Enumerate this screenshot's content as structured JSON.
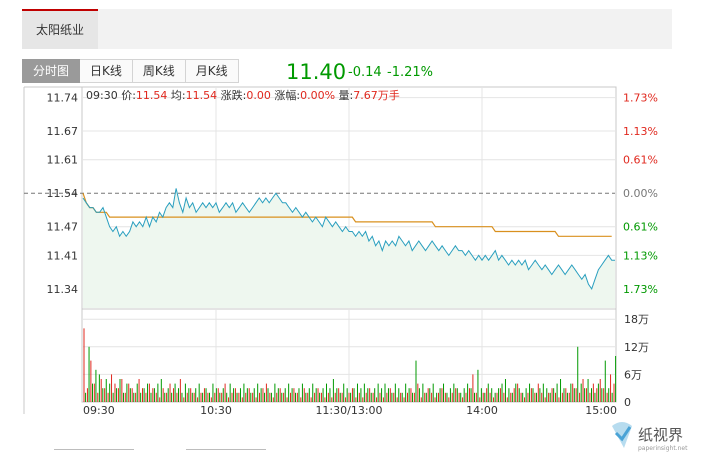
{
  "stock": {
    "name": "太阳纸业"
  },
  "tabs": [
    {
      "label": "分时图",
      "active": true
    },
    {
      "label": "日K线",
      "active": false
    },
    {
      "label": "周K线",
      "active": false
    },
    {
      "label": "月K线",
      "active": false
    }
  ],
  "quote": {
    "price": "11.40",
    "change": "-0.14",
    "change_pct": "-1.21%"
  },
  "info": {
    "time": "09:30",
    "price_label": "价:",
    "price": "11.54",
    "avg_label": "均:",
    "avg": "11.54",
    "chg_label": "涨跌:",
    "chg": "0.00",
    "amp_label": "涨幅:",
    "amp": "0.00%",
    "vol_label": "量:",
    "vol": "7.67万手"
  },
  "colors": {
    "up": "#e0281e",
    "down": "#009900",
    "price_line": "#2a9fbf",
    "avg_line": "#d9901e",
    "area_fill": "#eef7ef",
    "grid": "#e4e4e4"
  },
  "chart_data": {
    "type": "line",
    "prev_close": 11.54,
    "price_ticks": [
      "11.74",
      "11.67",
      "11.61",
      "11.54",
      "11.47",
      "11.41",
      "11.34"
    ],
    "price_tick_values": [
      11.74,
      11.67,
      11.61,
      11.54,
      11.47,
      11.41,
      11.34
    ],
    "pct_ticks": [
      "1.73%",
      "1.13%",
      "0.61%",
      "0.00%",
      "0.61%",
      "1.13%",
      "1.73%"
    ],
    "volume_ticks": [
      "18万",
      "12万",
      "6万",
      "0"
    ],
    "volume_tick_values": [
      18,
      12,
      6,
      0
    ],
    "time_labels": [
      "09:30",
      "10:30",
      "11:30/13:00",
      "14:00",
      "15:00"
    ],
    "ylim": [
      11.3,
      11.76
    ],
    "volume_ylim": [
      0,
      20
    ],
    "price": [
      11.53,
      11.52,
      11.51,
      11.51,
      11.5,
      11.5,
      11.51,
      11.49,
      11.47,
      11.46,
      11.47,
      11.45,
      11.46,
      11.45,
      11.46,
      11.48,
      11.47,
      11.48,
      11.47,
      11.49,
      11.47,
      11.49,
      11.48,
      11.5,
      11.49,
      11.51,
      11.52,
      11.51,
      11.55,
      11.52,
      11.5,
      11.53,
      11.51,
      11.52,
      11.5,
      11.51,
      11.52,
      11.51,
      11.52,
      11.51,
      11.52,
      11.5,
      11.51,
      11.52,
      11.51,
      11.52,
      11.5,
      11.51,
      11.52,
      11.51,
      11.5,
      11.51,
      11.52,
      11.53,
      11.52,
      11.53,
      11.52,
      11.53,
      11.54,
      11.53,
      11.52,
      11.52,
      11.51,
      11.5,
      11.51,
      11.5,
      11.49,
      11.5,
      11.49,
      11.48,
      11.49,
      11.48,
      11.47,
      11.49,
      11.48,
      11.47,
      11.48,
      11.47,
      11.46,
      11.47,
      11.46,
      11.46,
      11.45,
      11.46,
      11.45,
      11.46,
      11.44,
      11.45,
      11.43,
      11.44,
      11.42,
      11.44,
      11.43,
      11.44,
      11.43,
      11.45,
      11.44,
      11.43,
      11.44,
      11.42,
      11.43,
      11.44,
      11.43,
      11.42,
      11.43,
      11.44,
      11.43,
      11.42,
      11.43,
      11.42,
      11.41,
      11.42,
      11.43,
      11.42,
      11.42,
      11.41,
      11.42,
      11.41,
      11.4,
      11.41,
      11.4,
      11.41,
      11.4,
      11.41,
      11.42,
      11.4,
      11.41,
      11.4,
      11.39,
      11.4,
      11.39,
      11.4,
      11.39,
      11.4,
      11.38,
      11.39,
      11.4,
      11.39,
      11.38,
      11.39,
      11.38,
      11.37,
      11.38,
      11.39,
      11.38,
      11.37,
      11.38,
      11.39,
      11.38,
      11.37,
      11.36,
      11.37,
      11.35,
      11.34,
      11.36,
      11.38,
      11.39,
      11.4,
      11.41,
      11.4,
      11.4
    ],
    "avg": [
      11.54,
      11.52,
      11.51,
      11.51,
      11.5,
      11.5,
      11.5,
      11.5,
      11.49,
      11.49,
      11.49,
      11.49,
      11.49,
      11.49,
      11.49,
      11.49,
      11.49,
      11.49,
      11.49,
      11.49,
      11.49,
      11.49,
      11.49,
      11.49,
      11.49,
      11.49,
      11.49,
      11.49,
      11.49,
      11.49,
      11.49,
      11.49,
      11.49,
      11.49,
      11.49,
      11.49,
      11.49,
      11.49,
      11.49,
      11.49,
      11.49,
      11.49,
      11.49,
      11.49,
      11.49,
      11.49,
      11.49,
      11.49,
      11.49,
      11.49,
      11.49,
      11.49,
      11.49,
      11.49,
      11.49,
      11.49,
      11.49,
      11.49,
      11.49,
      11.49,
      11.49,
      11.49,
      11.49,
      11.49,
      11.49,
      11.49,
      11.49,
      11.49,
      11.49,
      11.49,
      11.49,
      11.49,
      11.49,
      11.49,
      11.49,
      11.49,
      11.49,
      11.49,
      11.49,
      11.49,
      11.49,
      11.49,
      11.48,
      11.48,
      11.48,
      11.48,
      11.48,
      11.48,
      11.48,
      11.48,
      11.48,
      11.48,
      11.48,
      11.48,
      11.48,
      11.48,
      11.48,
      11.48,
      11.48,
      11.48,
      11.48,
      11.48,
      11.48,
      11.48,
      11.48,
      11.48,
      11.47,
      11.47,
      11.47,
      11.47,
      11.47,
      11.47,
      11.47,
      11.47,
      11.47,
      11.47,
      11.47,
      11.47,
      11.47,
      11.47,
      11.47,
      11.47,
      11.47,
      11.47,
      11.46,
      11.46,
      11.46,
      11.46,
      11.46,
      11.46,
      11.46,
      11.46,
      11.46,
      11.46,
      11.46,
      11.46,
      11.46,
      11.46,
      11.46,
      11.46,
      11.46,
      11.46,
      11.46,
      11.45,
      11.45,
      11.45,
      11.45,
      11.45,
      11.45,
      11.45,
      11.45,
      11.45,
      11.45,
      11.45,
      11.45,
      11.45,
      11.45,
      11.45,
      11.45,
      11.45
    ],
    "volume_up": [
      16,
      3,
      9,
      4,
      2,
      5,
      3,
      2,
      6,
      4,
      3,
      5,
      2,
      4,
      3,
      2,
      5,
      3,
      2,
      4,
      3,
      2,
      1,
      3,
      2,
      4,
      3,
      2,
      5,
      1,
      2,
      3,
      2,
      1,
      2,
      3,
      2,
      1,
      2,
      3,
      2,
      4,
      1,
      2,
      3,
      2,
      1,
      2,
      3,
      2,
      1,
      2,
      3,
      4,
      2,
      1,
      2,
      3,
      2,
      1,
      2,
      3,
      2,
      1,
      3,
      2,
      1,
      2,
      3,
      2,
      1,
      2,
      1,
      2,
      3,
      2,
      1,
      2,
      3,
      1,
      2,
      1,
      2,
      3,
      2,
      1,
      2,
      1,
      2,
      3,
      2,
      1,
      2,
      1,
      2,
      3,
      2,
      4,
      1,
      2,
      3,
      2,
      1,
      2,
      3,
      2,
      1,
      2,
      3,
      2,
      1,
      2,
      3,
      6,
      2,
      1,
      2,
      3,
      2,
      1,
      2,
      3,
      2,
      1,
      2,
      3,
      4,
      2,
      1,
      2,
      3,
      2,
      4,
      2,
      1,
      2,
      3,
      2,
      1,
      2,
      3,
      2,
      4,
      3,
      2,
      5,
      3,
      2,
      4,
      3,
      5,
      3,
      2,
      6,
      4
    ],
    "volume_down": [
      2,
      12,
      4,
      7,
      6,
      3,
      5,
      4,
      2,
      3,
      5,
      2,
      4,
      3,
      2,
      4,
      2,
      3,
      4,
      2,
      3,
      4,
      5,
      2,
      3,
      2,
      4,
      3,
      2,
      4,
      3,
      2,
      3,
      4,
      2,
      3,
      2,
      4,
      3,
      2,
      3,
      2,
      4,
      3,
      2,
      3,
      4,
      3,
      2,
      3,
      4,
      3,
      2,
      3,
      2,
      4,
      3,
      2,
      3,
      4,
      3,
      2,
      3,
      4,
      2,
      3,
      4,
      3,
      2,
      3,
      4,
      3,
      5,
      3,
      2,
      4,
      3,
      2,
      3,
      4,
      3,
      4,
      3,
      2,
      3,
      4,
      3,
      4,
      3,
      2,
      4,
      3,
      2,
      4,
      3,
      2,
      9,
      3,
      4,
      2,
      3,
      4,
      2,
      3,
      4,
      2,
      3,
      4,
      3,
      2,
      3,
      4,
      3,
      2,
      7,
      3,
      2,
      4,
      3,
      2,
      3,
      4,
      5,
      3,
      2,
      4,
      3,
      2,
      3,
      4,
      3,
      2,
      3,
      4,
      3,
      2,
      3,
      4,
      5,
      3,
      2,
      4,
      3,
      12,
      4,
      3,
      5,
      3,
      2,
      4,
      3,
      9,
      3,
      2,
      10
    ]
  }
}
